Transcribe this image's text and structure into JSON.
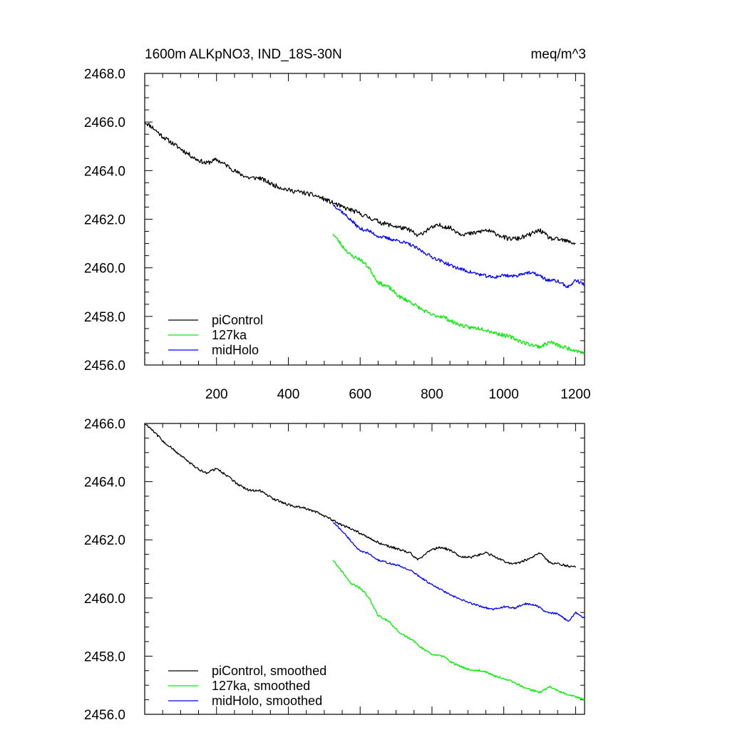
{
  "chart_data": [
    {
      "type": "line",
      "title_left": "1600m ALKpNO3, IND_18S-30N",
      "title_right": "meq/m^3",
      "xlim": [
        0,
        1225
      ],
      "ylim": [
        2456.0,
        2468.0
      ],
      "xticks": [
        200,
        400,
        600,
        800,
        1000,
        1200
      ],
      "xtick_labels": [
        "200",
        "400",
        "600",
        "800",
        "1000",
        "1200"
      ],
      "yticks": [
        2456.0,
        2458.0,
        2460.0,
        2462.0,
        2464.0,
        2466.0,
        2468.0
      ],
      "ytick_labels": [
        "2456.0",
        "2458.0",
        "2460.0",
        "2462.0",
        "2464.0",
        "2466.0",
        "2468.0"
      ],
      "legend": {
        "position": "bottom-left",
        "entries": [
          "piControl",
          "127ka",
          "midHolo"
        ]
      },
      "series": [
        {
          "name": "piControl",
          "color": "#000000",
          "noise": 0.09,
          "seed": 11,
          "x": [
            0,
            20,
            50,
            80,
            110,
            140,
            170,
            200,
            230,
            260,
            290,
            320,
            360,
            400,
            440,
            480,
            520,
            550,
            580,
            620,
            660,
            700,
            740,
            760,
            790,
            820,
            850,
            880,
            910,
            950,
            980,
            1010,
            1040,
            1070,
            1100,
            1130,
            1160,
            1200
          ],
          "y": [
            2466.0,
            2465.8,
            2465.4,
            2465.1,
            2464.8,
            2464.5,
            2464.3,
            2464.45,
            2464.2,
            2463.9,
            2463.7,
            2463.7,
            2463.4,
            2463.2,
            2463.1,
            2462.95,
            2462.7,
            2462.5,
            2462.35,
            2462.1,
            2461.85,
            2461.7,
            2461.55,
            2461.3,
            2461.6,
            2461.75,
            2461.65,
            2461.4,
            2461.4,
            2461.55,
            2461.4,
            2461.2,
            2461.2,
            2461.35,
            2461.55,
            2461.2,
            2461.15,
            2461.0
          ]
        },
        {
          "name": "127ka",
          "color": "#00ee00",
          "noise": 0.08,
          "seed": 23,
          "x": [
            525,
            550,
            575,
            600,
            625,
            650,
            680,
            710,
            740,
            770,
            800,
            830,
            860,
            900,
            940,
            980,
            1020,
            1060,
            1100,
            1130,
            1160,
            1190,
            1225
          ],
          "y": [
            2461.4,
            2460.9,
            2460.5,
            2460.35,
            2460.0,
            2459.4,
            2459.2,
            2458.8,
            2458.6,
            2458.3,
            2458.05,
            2458.0,
            2457.75,
            2457.55,
            2457.5,
            2457.3,
            2457.15,
            2456.9,
            2456.75,
            2456.95,
            2456.75,
            2456.65,
            2456.5
          ]
        },
        {
          "name": "midHolo",
          "color": "#0000ff",
          "noise": 0.07,
          "seed": 37,
          "x": [
            525,
            550,
            575,
            600,
            620,
            650,
            680,
            710,
            740,
            770,
            800,
            830,
            860,
            900,
            940,
            970,
            1000,
            1030,
            1060,
            1090,
            1120,
            1150,
            1180,
            1200,
            1225
          ],
          "y": [
            2462.6,
            2462.3,
            2461.95,
            2461.6,
            2461.55,
            2461.3,
            2461.2,
            2461.1,
            2460.95,
            2460.7,
            2460.45,
            2460.25,
            2460.05,
            2459.85,
            2459.7,
            2459.6,
            2459.7,
            2459.65,
            2459.8,
            2459.75,
            2459.5,
            2459.45,
            2459.2,
            2459.5,
            2459.3
          ]
        }
      ]
    },
    {
      "type": "line",
      "xlim": [
        0,
        1225
      ],
      "ylim": [
        2456.0,
        2466.0
      ],
      "xticks": [
        200,
        400,
        600,
        800,
        1000,
        1200
      ],
      "xtick_labels": [],
      "yticks": [
        2456.0,
        2458.0,
        2460.0,
        2462.0,
        2464.0,
        2466.0
      ],
      "ytick_labels": [
        "2456.0",
        "2458.0",
        "2460.0",
        "2462.0",
        "2464.0",
        "2466.0"
      ],
      "legend": {
        "position": "bottom-left",
        "entries": [
          "piControl, smoothed",
          "127ka, smoothed",
          "midHolo, smoothed"
        ]
      },
      "series": [
        {
          "name": "piControl, smoothed",
          "color": "#000000",
          "noise": 0.04,
          "seed": 11,
          "x": [
            0,
            20,
            50,
            80,
            110,
            140,
            170,
            200,
            230,
            260,
            290,
            320,
            360,
            400,
            440,
            480,
            520,
            550,
            580,
            620,
            660,
            700,
            740,
            760,
            790,
            820,
            850,
            880,
            910,
            950,
            980,
            1010,
            1040,
            1070,
            1100,
            1130,
            1160,
            1200
          ],
          "y": [
            2466.0,
            2465.8,
            2465.4,
            2465.1,
            2464.8,
            2464.5,
            2464.3,
            2464.45,
            2464.2,
            2463.9,
            2463.7,
            2463.7,
            2463.4,
            2463.2,
            2463.1,
            2462.95,
            2462.7,
            2462.5,
            2462.35,
            2462.1,
            2461.85,
            2461.7,
            2461.55,
            2461.3,
            2461.6,
            2461.75,
            2461.65,
            2461.4,
            2461.4,
            2461.55,
            2461.4,
            2461.2,
            2461.2,
            2461.35,
            2461.55,
            2461.2,
            2461.15,
            2461.05
          ]
        },
        {
          "name": "127ka, smoothed",
          "color": "#00ee00",
          "noise": 0.035,
          "seed": 23,
          "x": [
            525,
            550,
            575,
            600,
            625,
            650,
            680,
            710,
            740,
            770,
            800,
            830,
            860,
            900,
            940,
            980,
            1020,
            1060,
            1100,
            1130,
            1160,
            1190,
            1225
          ],
          "y": [
            2461.3,
            2460.9,
            2460.5,
            2460.35,
            2460.0,
            2459.4,
            2459.2,
            2458.8,
            2458.6,
            2458.3,
            2458.05,
            2458.0,
            2457.75,
            2457.55,
            2457.5,
            2457.3,
            2457.15,
            2456.9,
            2456.75,
            2456.95,
            2456.75,
            2456.65,
            2456.5
          ]
        },
        {
          "name": "midHolo, smoothed",
          "color": "#0000ff",
          "noise": 0.03,
          "seed": 37,
          "x": [
            525,
            550,
            575,
            600,
            620,
            650,
            680,
            710,
            740,
            770,
            800,
            830,
            860,
            900,
            940,
            970,
            1000,
            1030,
            1060,
            1090,
            1120,
            1150,
            1180,
            1200,
            1225
          ],
          "y": [
            2462.6,
            2462.3,
            2461.95,
            2461.6,
            2461.55,
            2461.3,
            2461.2,
            2461.1,
            2460.95,
            2460.7,
            2460.45,
            2460.25,
            2460.05,
            2459.85,
            2459.7,
            2459.6,
            2459.7,
            2459.65,
            2459.8,
            2459.75,
            2459.5,
            2459.45,
            2459.2,
            2459.5,
            2459.3
          ]
        }
      ]
    }
  ]
}
